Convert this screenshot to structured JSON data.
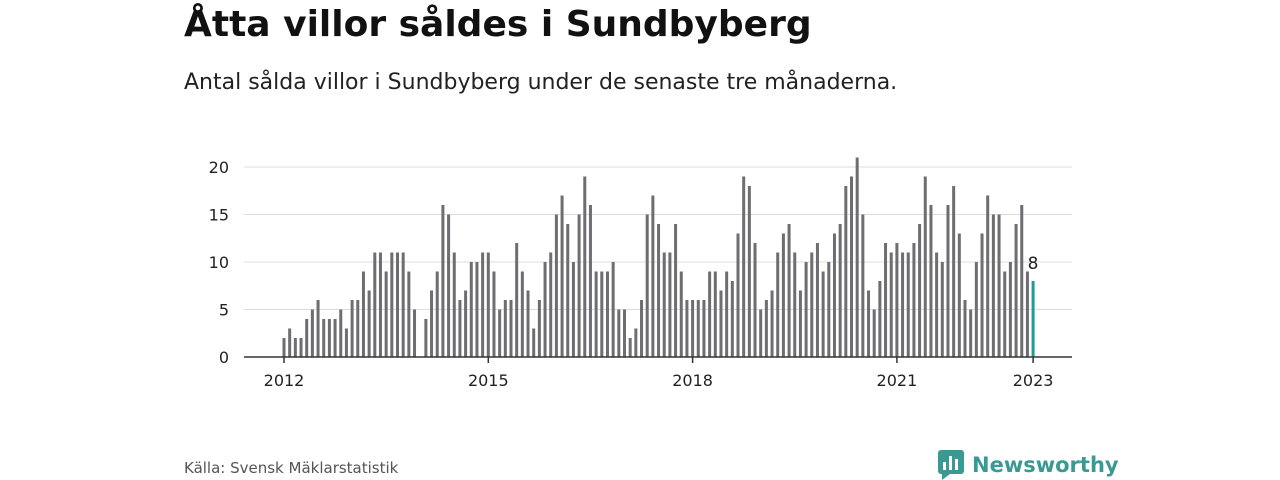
{
  "title": "Åtta villor såldes i Sundbyberg",
  "subtitle": "Antal sålda villor i Sundbyberg under de senaste tre månaderna.",
  "source": "Källa: Svensk Mäklarstatistik",
  "brand": {
    "name": "Newsworthy",
    "color": "#3a9a93"
  },
  "colors": {
    "bar": "#6d6d72",
    "highlight": "#1f9c96",
    "grid": "#dcdcdc",
    "axis": "#333333"
  },
  "chart_data": {
    "type": "bar",
    "x_start": "2012-01",
    "x_end": "2023-01",
    "x_unit": "month",
    "values": [
      2,
      3,
      2,
      2,
      4,
      5,
      6,
      4,
      4,
      4,
      5,
      3,
      6,
      6,
      9,
      7,
      11,
      11,
      9,
      11,
      11,
      11,
      9,
      5,
      null,
      4,
      7,
      9,
      16,
      15,
      11,
      6,
      7,
      10,
      10,
      11,
      11,
      9,
      5,
      6,
      6,
      12,
      9,
      7,
      3,
      6,
      10,
      11,
      15,
      17,
      14,
      10,
      15,
      19,
      16,
      9,
      9,
      9,
      10,
      5,
      5,
      2,
      3,
      6,
      15,
      17,
      14,
      11,
      11,
      14,
      9,
      6,
      6,
      6,
      6,
      9,
      9,
      7,
      9,
      8,
      13,
      19,
      18,
      12,
      5,
      6,
      7,
      11,
      13,
      14,
      11,
      7,
      10,
      11,
      12,
      9,
      10,
      13,
      14,
      18,
      19,
      21,
      15,
      7,
      5,
      8,
      12,
      11,
      12,
      11,
      11,
      12,
      14,
      19,
      16,
      11,
      10,
      16,
      18,
      13,
      6,
      5,
      10,
      13,
      17,
      15,
      15,
      9,
      10,
      14,
      16,
      9,
      8
    ],
    "highlight_last": true,
    "last_value_label": "8",
    "ylim": [
      0,
      21
    ],
    "yticks": [
      "0",
      "5",
      "10",
      "15",
      "20"
    ],
    "ytick_values": [
      0,
      5,
      10,
      15,
      20
    ],
    "xticks": [
      "2012",
      "2015",
      "2018",
      "2021",
      "2023"
    ],
    "xtick_dates": [
      "2012-01",
      "2015-01",
      "2018-01",
      "2021-01",
      "2023-01"
    ],
    "grid": true,
    "xlabel": "",
    "ylabel": ""
  }
}
